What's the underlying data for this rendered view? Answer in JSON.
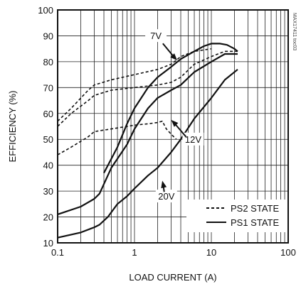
{
  "chart_data": {
    "type": "line",
    "xlabel": "LOAD CURRENT (A)",
    "ylabel": "EFFICIENCY (%)",
    "xscale": "log",
    "xlim": [
      0.1,
      100
    ],
    "ylim": [
      10,
      100
    ],
    "grid": true,
    "legend_position": "bottom-right",
    "x_tick_labels": [
      "0.1",
      "1",
      "10",
      "100"
    ],
    "y_tick_labels": [
      "10",
      "20",
      "30",
      "40",
      "50",
      "60",
      "70",
      "80",
      "90",
      "100"
    ],
    "watermark": "MAX17411 toc03",
    "legend": [
      {
        "label": "PS2 STATE",
        "style": "dashed"
      },
      {
        "label": "PS1 STATE",
        "style": "solid"
      }
    ],
    "annotations": [
      {
        "text": "7V",
        "label_at": [
          1.9,
          89
        ],
        "arrow_to": [
          3.6,
          80.5
        ]
      },
      {
        "text": "12V",
        "label_at": [
          5.8,
          49
        ],
        "arrow_to": [
          3.0,
          57.5
        ]
      },
      {
        "text": "20V",
        "label_at": [
          2.6,
          27
        ],
        "arrow_to": [
          2.3,
          34
        ]
      }
    ],
    "series": [
      {
        "style": "dashed",
        "points": [
          [
            0.1,
            57
          ],
          [
            0.15,
            62
          ],
          [
            0.25,
            69
          ],
          [
            0.3,
            71
          ],
          [
            0.5,
            73
          ],
          [
            1,
            75
          ],
          [
            2,
            77
          ],
          [
            3,
            79
          ],
          [
            4,
            82
          ],
          [
            6,
            84
          ],
          [
            10,
            85
          ]
        ]
      },
      {
        "style": "dashed",
        "points": [
          [
            0.1,
            55
          ],
          [
            0.15,
            60
          ],
          [
            0.25,
            65
          ],
          [
            0.3,
            67
          ],
          [
            0.5,
            69
          ],
          [
            1,
            70
          ],
          [
            2,
            71
          ],
          [
            3,
            72
          ],
          [
            4,
            74
          ],
          [
            6,
            79
          ],
          [
            10,
            82
          ],
          [
            15,
            84
          ],
          [
            22,
            84
          ]
        ]
      },
      {
        "style": "dashed",
        "points": [
          [
            0.1,
            44
          ],
          [
            0.15,
            47
          ],
          [
            0.25,
            51
          ],
          [
            0.3,
            53
          ],
          [
            0.5,
            54
          ],
          [
            0.8,
            55
          ],
          [
            1,
            55.5
          ],
          [
            1.5,
            56
          ],
          [
            2,
            56.5
          ],
          [
            2.3,
            57
          ],
          [
            2.6,
            54
          ],
          [
            3,
            52
          ],
          [
            3.5,
            50
          ]
        ]
      },
      {
        "style": "solid",
        "points": [
          [
            0.4,
            37
          ],
          [
            0.6,
            47
          ],
          [
            0.8,
            56
          ],
          [
            1,
            62
          ],
          [
            1.5,
            70
          ],
          [
            2,
            74
          ],
          [
            3,
            78
          ],
          [
            4,
            81
          ],
          [
            6,
            84
          ],
          [
            8,
            86
          ],
          [
            10,
            87
          ],
          [
            13,
            87
          ],
          [
            16,
            86.5
          ],
          [
            20,
            85
          ],
          [
            22,
            84
          ]
        ]
      },
      {
        "style": "solid",
        "points": [
          [
            0.1,
            21
          ],
          [
            0.2,
            24
          ],
          [
            0.3,
            27
          ],
          [
            0.35,
            29
          ],
          [
            0.45,
            36
          ],
          [
            0.5,
            39
          ],
          [
            0.8,
            48
          ],
          [
            1,
            54
          ],
          [
            1.5,
            62
          ],
          [
            2,
            66
          ],
          [
            3,
            69
          ],
          [
            4,
            71
          ],
          [
            6,
            76
          ],
          [
            10,
            80
          ],
          [
            15,
            83
          ],
          [
            22,
            83
          ]
        ]
      },
      {
        "style": "solid",
        "points": [
          [
            0.1,
            12
          ],
          [
            0.2,
            14
          ],
          [
            0.3,
            16
          ],
          [
            0.35,
            17
          ],
          [
            0.45,
            20
          ],
          [
            0.6,
            25
          ],
          [
            0.8,
            28
          ],
          [
            1,
            31
          ],
          [
            1.5,
            36
          ],
          [
            2,
            39
          ],
          [
            3,
            45
          ],
          [
            4,
            50
          ],
          [
            6,
            58
          ],
          [
            10,
            66
          ],
          [
            15,
            73
          ],
          [
            22,
            77
          ]
        ]
      }
    ]
  }
}
